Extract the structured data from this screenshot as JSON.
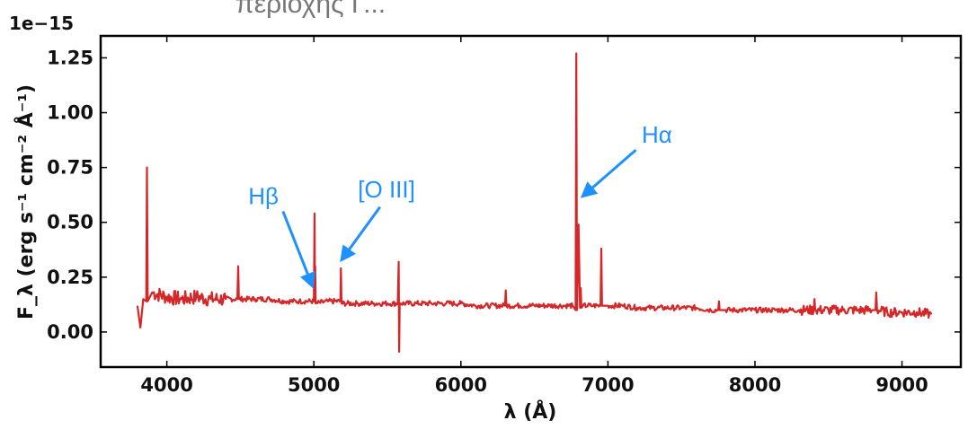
{
  "header_text": "περιοχής Γ...",
  "chart_data": {
    "type": "line",
    "xlabel": "λ (Å)",
    "ylabel": "F_λ (erg s⁻¹ cm⁻² Å⁻¹)",
    "y_offset_label": "1e−15",
    "xlim": [
      3550,
      9400
    ],
    "ylim": [
      -0.16,
      1.35
    ],
    "x_ticks": [
      4000,
      5000,
      6000,
      7000,
      8000,
      9000
    ],
    "y_ticks": [
      0.0,
      0.25,
      0.5,
      0.75,
      1.0,
      1.25
    ],
    "x_tick_labels": [
      "4000",
      "5000",
      "6000",
      "7000",
      "8000",
      "9000"
    ],
    "y_tick_labels": [
      "0.00",
      "0.25",
      "0.50",
      "0.75",
      "1.00",
      "1.25"
    ],
    "line_color": "#d62728",
    "series": [
      {
        "x": [
          3800,
          3820,
          3840,
          3860,
          3865,
          3870,
          3900,
          4000,
          4100,
          4200,
          4300,
          4400,
          4480,
          4485,
          4490,
          4600,
          4700,
          4800,
          4900,
          5000,
          5005,
          5007,
          5009,
          5012,
          5100,
          5180,
          5184,
          5188,
          5300,
          5400,
          5500,
          5570,
          5577,
          5580,
          5584,
          5590,
          5700,
          5800,
          5900,
          6000,
          6100,
          6200,
          6300,
          6305,
          6310,
          6400,
          6500,
          6600,
          6700,
          6760,
          6780,
          6785,
          6790,
          6800,
          6810,
          6815,
          6820,
          6830,
          6900,
          6950,
          6955,
          6960,
          7000,
          7100,
          7200,
          7300,
          7400,
          7500,
          7600,
          7700,
          7750,
          7755,
          7760,
          7800,
          7900,
          8000,
          8100,
          8200,
          8300,
          8400,
          8405,
          8410,
          8500,
          8600,
          8700,
          8800,
          8820,
          8825,
          8830,
          8900,
          9000,
          9100,
          9200
        ],
        "y": [
          0.12,
          0.02,
          0.15,
          0.14,
          0.75,
          0.14,
          0.18,
          0.16,
          0.15,
          0.16,
          0.15,
          0.15,
          0.15,
          0.3,
          0.15,
          0.15,
          0.15,
          0.14,
          0.14,
          0.14,
          0.54,
          0.14,
          0.3,
          0.13,
          0.14,
          0.14,
          0.29,
          0.13,
          0.13,
          0.13,
          0.13,
          0.13,
          0.32,
          -0.09,
          0.13,
          0.13,
          0.13,
          0.13,
          0.13,
          0.13,
          0.12,
          0.12,
          0.12,
          0.19,
          0.12,
          0.12,
          0.12,
          0.12,
          0.12,
          0.12,
          0.1,
          1.27,
          0.1,
          0.49,
          0.11,
          0.2,
          0.11,
          0.12,
          0.12,
          0.12,
          0.38,
          0.12,
          0.12,
          0.12,
          0.11,
          0.11,
          0.11,
          0.11,
          0.11,
          0.1,
          0.1,
          0.14,
          0.1,
          0.1,
          0.1,
          0.1,
          0.1,
          0.1,
          0.1,
          0.1,
          0.15,
          0.1,
          0.1,
          0.1,
          0.1,
          0.1,
          0.1,
          0.18,
          0.1,
          0.09,
          0.09,
          0.09,
          0.08
        ]
      }
    ],
    "annotations": [
      {
        "text": "Hβ",
        "text_x": 4760,
        "text_y": 0.55,
        "arrow_from": [
          4790,
          0.55
        ],
        "arrow_to": [
          4990,
          0.21
        ]
      },
      {
        "text": "[O III]",
        "text_x": 5300,
        "text_y": 0.58,
        "arrow_from": [
          5450,
          0.57
        ],
        "arrow_to": [
          5190,
          0.33
        ]
      },
      {
        "text": "Hα",
        "text_x": 7230,
        "text_y": 0.83,
        "arrow_from": [
          7190,
          0.83
        ],
        "arrow_to": [
          6830,
          0.62
        ]
      }
    ]
  }
}
